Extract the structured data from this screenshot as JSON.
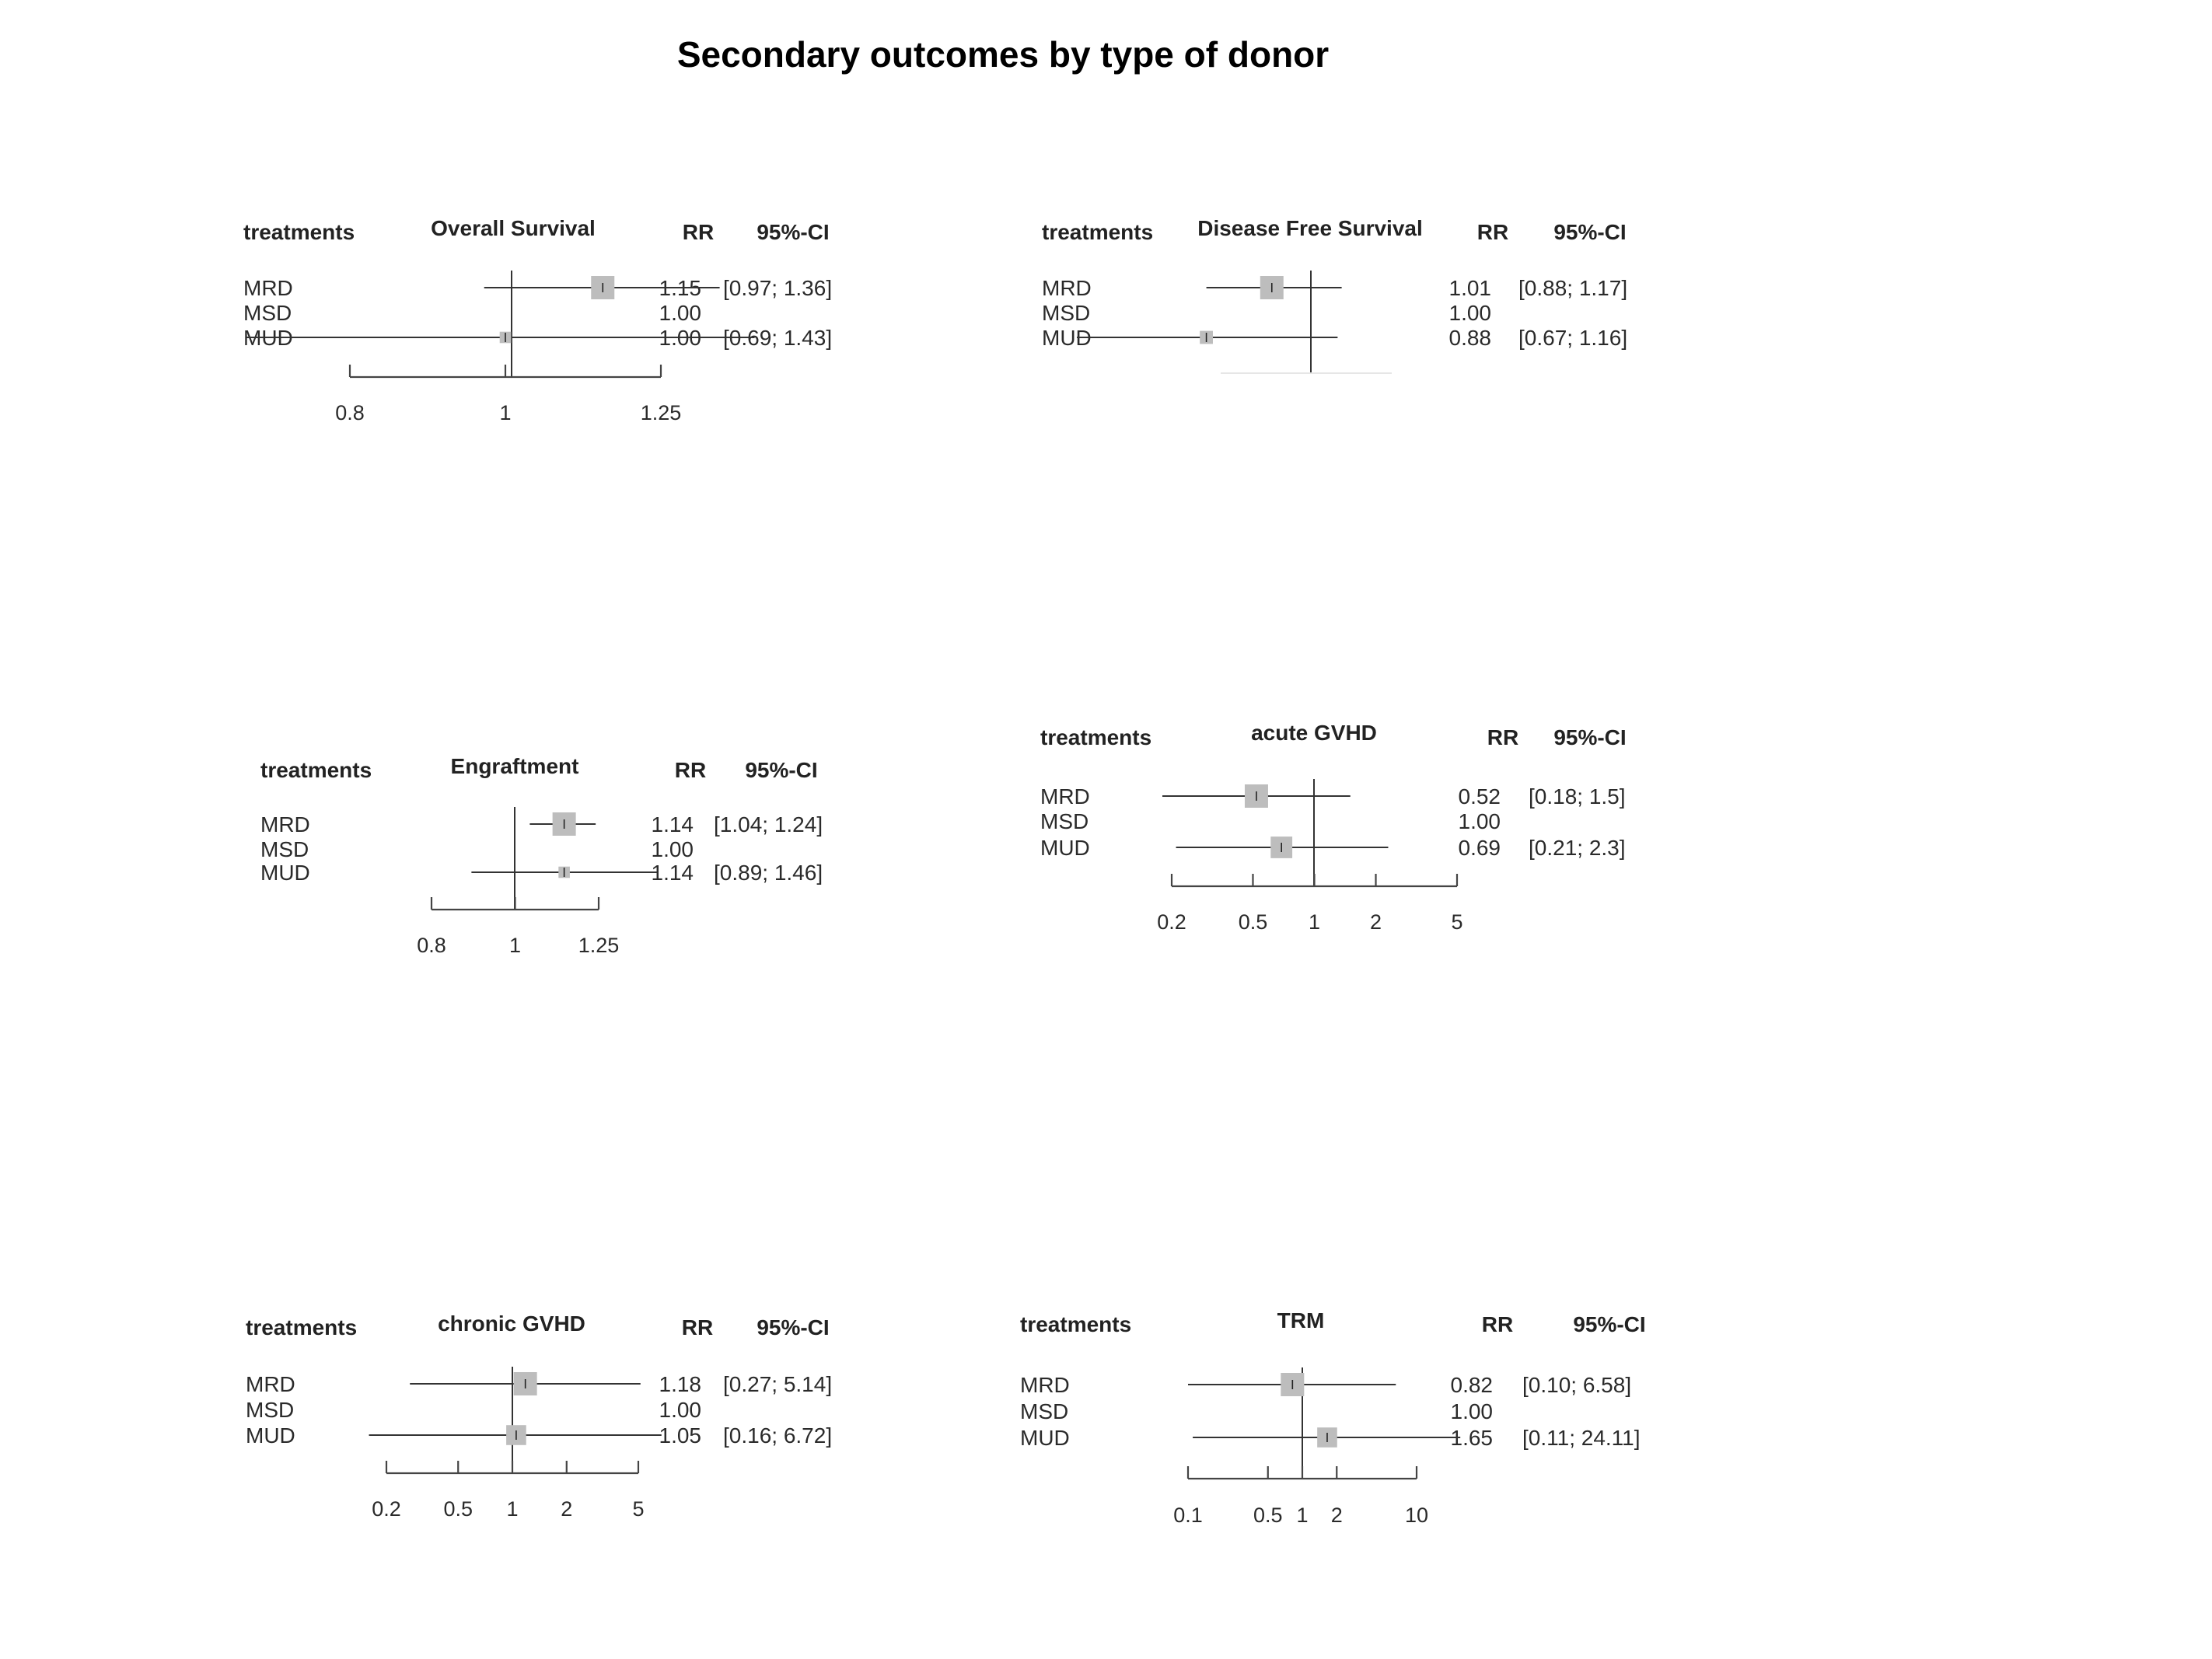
{
  "title": "Secondary outcomes by type of donor",
  "headers": {
    "treatments": "treatments",
    "rr": "RR",
    "ci": "95%-CI"
  },
  "chart_data": [
    {
      "type": "forest",
      "title": "Overall Survival",
      "scale": "log",
      "ticks": [
        0.8,
        1,
        1.25
      ],
      "tick_labels": [
        "0.8",
        "1",
        "1.25"
      ],
      "xlim": [
        0.8,
        1.25
      ],
      "rows": [
        {
          "treatment": "MRD",
          "rr": 1.15,
          "lo": 0.97,
          "hi": 1.36,
          "rr_text": "1.15",
          "ci_text": "[0.97; 1.36]",
          "weight": 1.0
        },
        {
          "treatment": "MSD",
          "rr": 1.0,
          "lo": null,
          "hi": null,
          "rr_text": "1.00",
          "ci_text": "",
          "weight": 0
        },
        {
          "treatment": "MUD",
          "rr": 1.0,
          "lo": 0.69,
          "hi": 1.43,
          "rr_text": "1.00",
          "ci_text": "[0.69; 1.43]",
          "weight": 0.3
        }
      ]
    },
    {
      "type": "forest",
      "title": "Disease Free Survival",
      "scale": "log",
      "ticks": [],
      "tick_labels": [],
      "xlim": [
        0.77,
        1.3
      ],
      "rows": [
        {
          "treatment": "MRD",
          "rr": 1.01,
          "lo": 0.88,
          "hi": 1.17,
          "rr_text": "1.01",
          "ci_text": "[0.88; 1.17]",
          "weight": 1.0
        },
        {
          "treatment": "MSD",
          "rr": 1.0,
          "lo": null,
          "hi": null,
          "rr_text": "1.00",
          "ci_text": "",
          "weight": 0
        },
        {
          "treatment": "MUD",
          "rr": 0.88,
          "lo": 0.67,
          "hi": 1.16,
          "rr_text": "0.88",
          "ci_text": "[0.67; 1.16]",
          "weight": 0.4
        }
      ]
    },
    {
      "type": "forest",
      "title": "Engraftment",
      "scale": "log",
      "ticks": [
        0.8,
        1,
        1.25
      ],
      "tick_labels": [
        "0.8",
        "1",
        "1.25"
      ],
      "xlim": [
        0.8,
        1.25
      ],
      "rows": [
        {
          "treatment": "MRD",
          "rr": 1.14,
          "lo": 1.04,
          "hi": 1.24,
          "rr_text": "1.14",
          "ci_text": "[1.04; 1.24]",
          "weight": 1.0
        },
        {
          "treatment": "MSD",
          "rr": 1.0,
          "lo": null,
          "hi": null,
          "rr_text": "1.00",
          "ci_text": "",
          "weight": 0
        },
        {
          "treatment": "MUD",
          "rr": 1.14,
          "lo": 0.89,
          "hi": 1.46,
          "rr_text": "1.14",
          "ci_text": "[0.89; 1.46]",
          "weight": 0.3
        }
      ]
    },
    {
      "type": "forest",
      "title": "acute GVHD",
      "scale": "log",
      "ticks": [
        0.2,
        0.5,
        1,
        2,
        5
      ],
      "tick_labels": [
        "0.2",
        "0.5",
        "1",
        "2",
        "5"
      ],
      "xlim": [
        0.2,
        5
      ],
      "rows": [
        {
          "treatment": "MRD",
          "rr": 0.52,
          "lo": 0.18,
          "hi": 1.5,
          "rr_text": "0.52",
          "ci_text": "[0.18; 1.5]",
          "weight": 1.0
        },
        {
          "treatment": "MSD",
          "rr": 1.0,
          "lo": null,
          "hi": null,
          "rr_text": "1.00",
          "ci_text": "",
          "weight": 0
        },
        {
          "treatment": "MUD",
          "rr": 0.69,
          "lo": 0.21,
          "hi": 2.3,
          "rr_text": "0.69",
          "ci_text": "[0.21; 2.3]",
          "weight": 0.9
        }
      ]
    },
    {
      "type": "forest",
      "title": "chronic GVHD",
      "scale": "log",
      "ticks": [
        0.2,
        0.5,
        1,
        2,
        5
      ],
      "tick_labels": [
        "0.2",
        "0.5",
        "1",
        "2",
        "5"
      ],
      "xlim": [
        0.2,
        5
      ],
      "rows": [
        {
          "treatment": "MRD",
          "rr": 1.18,
          "lo": 0.27,
          "hi": 5.14,
          "rr_text": "1.18",
          "ci_text": "[0.27; 5.14]",
          "weight": 1.0
        },
        {
          "treatment": "MSD",
          "rr": 1.0,
          "lo": null,
          "hi": null,
          "rr_text": "1.00",
          "ci_text": "",
          "weight": 0
        },
        {
          "treatment": "MUD",
          "rr": 1.05,
          "lo": 0.16,
          "hi": 6.72,
          "rr_text": "1.05",
          "ci_text": "[0.16; 6.72]",
          "weight": 0.8
        }
      ]
    },
    {
      "type": "forest",
      "title": "TRM",
      "scale": "log",
      "ticks": [
        0.1,
        0.5,
        1,
        2,
        10
      ],
      "tick_labels": [
        "0.1",
        "0.5",
        "1",
        "2",
        "10"
      ],
      "xlim": [
        0.1,
        10
      ],
      "rows": [
        {
          "treatment": "MRD",
          "rr": 0.82,
          "lo": 0.1,
          "hi": 6.58,
          "rr_text": "0.82",
          "ci_text": "[0.10;  6.58]",
          "weight": 1.0
        },
        {
          "treatment": "MSD",
          "rr": 1.0,
          "lo": null,
          "hi": null,
          "rr_text": "1.00",
          "ci_text": "",
          "weight": 0
        },
        {
          "treatment": "MUD",
          "rr": 1.65,
          "lo": 0.11,
          "hi": 24.11,
          "rr_text": "1.65",
          "ci_text": "[0.11; 24.11]",
          "weight": 0.8
        }
      ]
    }
  ]
}
